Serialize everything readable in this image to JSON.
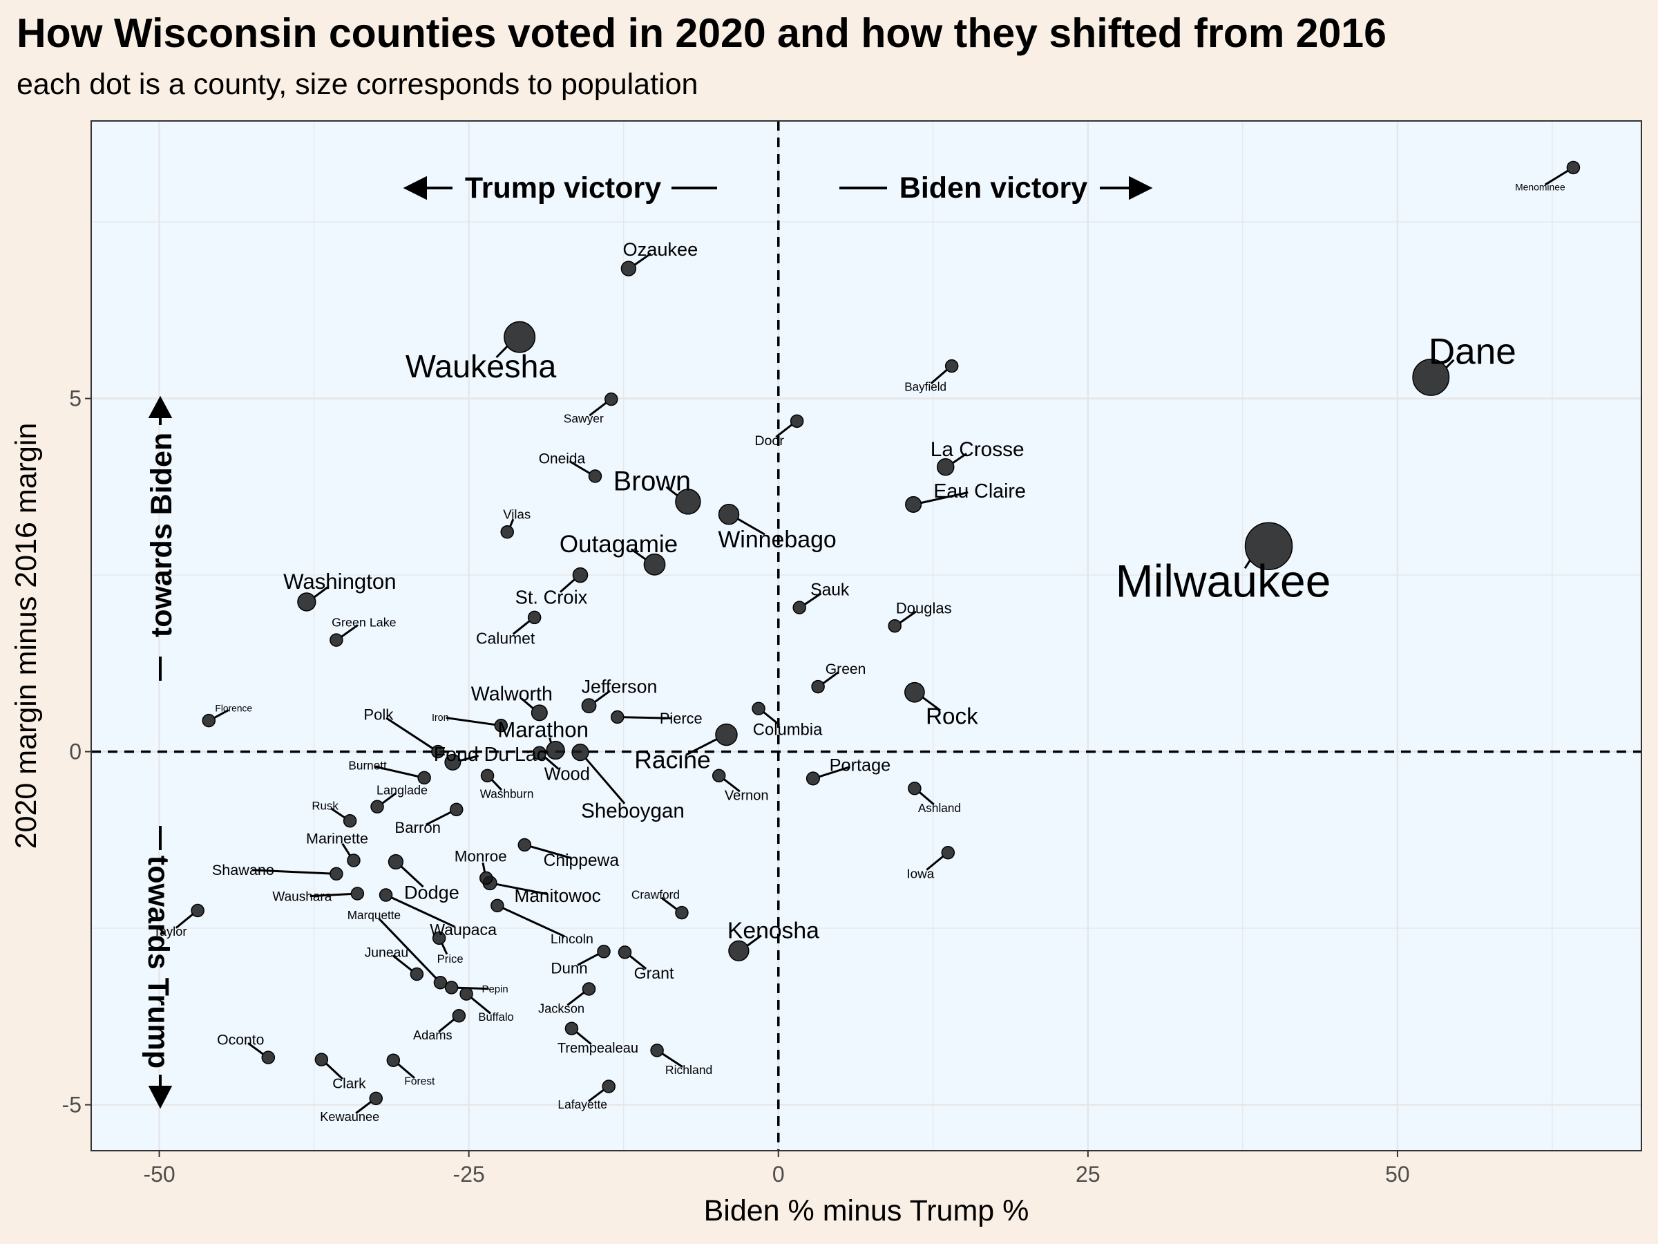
{
  "chart_data": {
    "type": "scatter",
    "title": "How Wisconsin counties voted in 2020 and how they shifted from 2016",
    "subtitle": "each dot is a county, size corresponds to population",
    "xlabel": "Biden % minus Trump %",
    "ylabel": "2020 margin minus 2016 margin",
    "xlim": [
      -55.5,
      69.7
    ],
    "ylim": [
      -5.65,
      8.93
    ],
    "x_ticks": [
      -50,
      -25,
      0,
      25,
      50
    ],
    "y_ticks": [
      -5,
      0,
      5
    ],
    "x_tick_labels": [
      "-50",
      "-25",
      "0",
      "25",
      "50"
    ],
    "y_tick_labels": [
      "-5",
      "0",
      "5"
    ],
    "grid": true,
    "reference_lines": {
      "x": 0,
      "y": 0,
      "style": "dashed"
    },
    "annotations": {
      "trump_victory": "Trump victory",
      "biden_victory": "Biden victory",
      "towards_biden": "towards Biden",
      "towards_trump": "towards Trump"
    },
    "colors": {
      "plot_background": "#eff7ff",
      "page_background": "#faefe4",
      "point": "#1a1a1a",
      "grid": "#e6e6e6"
    },
    "counties": [
      {
        "name": "Menominee",
        "x": 64.2,
        "y": 8.27,
        "pop": 4500
      },
      {
        "name": "Dane",
        "x": 52.7,
        "y": 5.3,
        "pop": 561500
      },
      {
        "name": "Milwaukee",
        "x": 39.6,
        "y": 2.91,
        "pop": 945700
      },
      {
        "name": "Bayfield",
        "x": 14.0,
        "y": 5.46,
        "pop": 15000
      },
      {
        "name": "La Crosse",
        "x": 13.5,
        "y": 4.03,
        "pop": 118000
      },
      {
        "name": "Eau Claire",
        "x": 10.9,
        "y": 3.5,
        "pop": 104600
      },
      {
        "name": "Douglas",
        "x": 9.4,
        "y": 1.78,
        "pop": 43200
      },
      {
        "name": "Rock",
        "x": 11.0,
        "y": 0.84,
        "pop": 163000
      },
      {
        "name": "Ashland",
        "x": 11.0,
        "y": -0.52,
        "pop": 15500
      },
      {
        "name": "Iowa",
        "x": 13.7,
        "y": -1.43,
        "pop": 23700
      },
      {
        "name": "Portage",
        "x": 2.8,
        "y": -0.38,
        "pop": 70800
      },
      {
        "name": "Green",
        "x": 3.2,
        "y": 0.92,
        "pop": 36900
      },
      {
        "name": "Sauk",
        "x": 1.7,
        "y": 2.04,
        "pop": 64400
      },
      {
        "name": "Door",
        "x": 1.5,
        "y": 4.68,
        "pop": 27700
      },
      {
        "name": "Columbia",
        "x": -1.6,
        "y": 0.61,
        "pop": 57500
      },
      {
        "name": "Kenosha",
        "x": -3.2,
        "y": -2.82,
        "pop": 169600
      },
      {
        "name": "Vernon",
        "x": -4.8,
        "y": -0.34,
        "pop": 30800
      },
      {
        "name": "Racine",
        "x": -4.2,
        "y": 0.24,
        "pop": 196300
      },
      {
        "name": "Winnebago",
        "x": -4.0,
        "y": 3.36,
        "pop": 171700
      },
      {
        "name": "Brown",
        "x": -7.3,
        "y": 3.54,
        "pop": 264500
      },
      {
        "name": "Outagamie",
        "x": -10.0,
        "y": 2.65,
        "pop": 187900
      },
      {
        "name": "Ozaukee",
        "x": -12.1,
        "y": 6.84,
        "pop": 89200
      },
      {
        "name": "Sawyer",
        "x": -13.5,
        "y": 4.99,
        "pop": 16600
      },
      {
        "name": "Oneida",
        "x": -14.8,
        "y": 3.9,
        "pop": 35600
      },
      {
        "name": "Richland",
        "x": -9.8,
        "y": -4.23,
        "pop": 17300
      },
      {
        "name": "Crawford",
        "x": -7.8,
        "y": -2.28,
        "pop": 16100
      },
      {
        "name": "Grant",
        "x": -12.4,
        "y": -2.84,
        "pop": 51400
      },
      {
        "name": "Dunn",
        "x": -14.1,
        "y": -2.83,
        "pop": 45400
      },
      {
        "name": "Jackson",
        "x": -15.3,
        "y": -3.36,
        "pop": 20600
      },
      {
        "name": "Trempealeau",
        "x": -16.7,
        "y": -3.92,
        "pop": 30100
      },
      {
        "name": "Lafayette",
        "x": -13.7,
        "y": -4.74,
        "pop": 16700
      },
      {
        "name": "Pierce",
        "x": -13.0,
        "y": 0.49,
        "pop": 42200
      },
      {
        "name": "Jefferson",
        "x": -15.3,
        "y": 0.65,
        "pop": 84800
      },
      {
        "name": "St. Croix",
        "x": -16.0,
        "y": 2.5,
        "pop": 90700
      },
      {
        "name": "Calumet",
        "x": -19.7,
        "y": 1.9,
        "pop": 50000
      },
      {
        "name": "Walworth",
        "x": -19.3,
        "y": 0.55,
        "pop": 103900
      },
      {
        "name": "Marathon",
        "x": -18.0,
        "y": 0.02,
        "pop": 135700
      },
      {
        "name": "Wood",
        "x": -19.3,
        "y": -0.02,
        "pop": 72900
      },
      {
        "name": "Sheboygan",
        "x": -16.0,
        "y": -0.01,
        "pop": 115300
      },
      {
        "name": "Chippewa",
        "x": -20.5,
        "y": -1.32,
        "pop": 64700
      },
      {
        "name": "Manitowoc",
        "x": -23.3,
        "y": -1.86,
        "pop": 78900
      },
      {
        "name": "Monroe",
        "x": -23.6,
        "y": -1.79,
        "pop": 46000
      },
      {
        "name": "Lincoln",
        "x": -22.7,
        "y": -2.18,
        "pop": 27600
      },
      {
        "name": "Waukesha",
        "x": -20.9,
        "y": 5.87,
        "pop": 404200
      },
      {
        "name": "Vilas",
        "x": -21.9,
        "y": 3.11,
        "pop": 22200
      },
      {
        "name": "Iron",
        "x": -22.4,
        "y": 0.37,
        "pop": 5700
      },
      {
        "name": "Washburn",
        "x": -23.5,
        "y": -0.34,
        "pop": 15700
      },
      {
        "name": "Fond Du Lac",
        "x": -26.3,
        "y": -0.15,
        "pop": 103400
      },
      {
        "name": "Polk",
        "x": -27.5,
        "y": 0.0,
        "pop": 43800
      },
      {
        "name": "Burnett",
        "x": -28.6,
        "y": -0.37,
        "pop": 15500
      },
      {
        "name": "Barron",
        "x": -26.0,
        "y": -0.82,
        "pop": 45200
      },
      {
        "name": "Langlade",
        "x": -32.4,
        "y": -0.78,
        "pop": 19200
      },
      {
        "name": "Rusk",
        "x": -34.6,
        "y": -0.98,
        "pop": 14200
      },
      {
        "name": "Washington",
        "x": -38.1,
        "y": 2.12,
        "pop": 136000
      },
      {
        "name": "Green Lake",
        "x": -35.7,
        "y": 1.58,
        "pop": 18900
      },
      {
        "name": "Florence",
        "x": -46.0,
        "y": 0.44,
        "pop": 4300
      },
      {
        "name": "Dodge",
        "x": -30.9,
        "y": -1.56,
        "pop": 87800
      },
      {
        "name": "Marinette",
        "x": -34.3,
        "y": -1.54,
        "pop": 40400
      },
      {
        "name": "Shawano",
        "x": -35.7,
        "y": -1.73,
        "pop": 40800
      },
      {
        "name": "Waushara",
        "x": -34.0,
        "y": -2.01,
        "pop": 24400
      },
      {
        "name": "Waupaca",
        "x": -31.7,
        "y": -2.03,
        "pop": 51400
      },
      {
        "name": "Taylor",
        "x": -46.9,
        "y": -2.25,
        "pop": 20300
      },
      {
        "name": "Price",
        "x": -27.4,
        "y": -2.64,
        "pop": 13400
      },
      {
        "name": "Juneau",
        "x": -29.2,
        "y": -3.15,
        "pop": 26700
      },
      {
        "name": "Marquette",
        "x": -27.3,
        "y": -3.27,
        "pop": 15600
      },
      {
        "name": "Pepin",
        "x": -26.4,
        "y": -3.34,
        "pop": 7300
      },
      {
        "name": "Buffalo",
        "x": -25.2,
        "y": -3.43,
        "pop": 13300
      },
      {
        "name": "Adams",
        "x": -25.8,
        "y": -3.74,
        "pop": 20200
      },
      {
        "name": "Oconto",
        "x": -41.2,
        "y": -4.33,
        "pop": 37900
      },
      {
        "name": "Clark",
        "x": -36.9,
        "y": -4.36,
        "pop": 34700
      },
      {
        "name": "Forest",
        "x": -31.1,
        "y": -4.37,
        "pop": 9100
      },
      {
        "name": "Kewaunee",
        "x": -32.5,
        "y": -4.91,
        "pop": 20400
      }
    ]
  }
}
